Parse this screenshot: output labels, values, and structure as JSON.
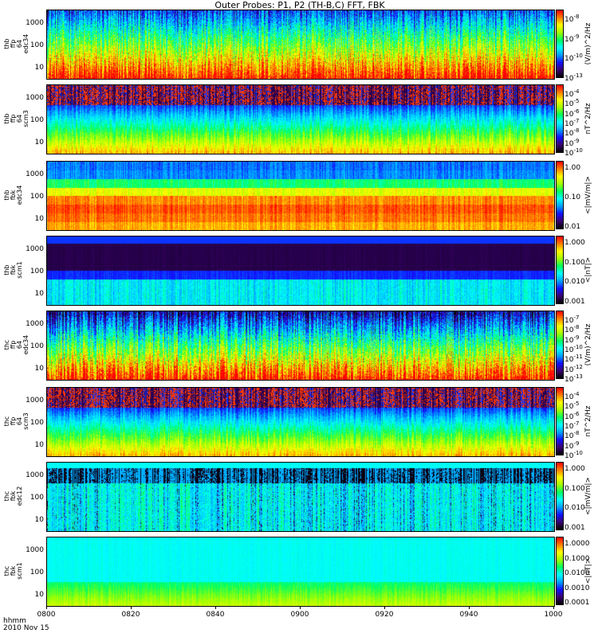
{
  "title": "Outer Probes: P1, P2 (TH-B,C) FFT, FBK",
  "x_axis": {
    "label_top": "hhmm",
    "label_bottom": "2010 Nov 15",
    "ticks": [
      "0800",
      "0820",
      "0840",
      "0900",
      "0920",
      "0940",
      "1000"
    ]
  },
  "colors": {
    "colormap": [
      "#000000",
      "#3a0070",
      "#1010ff",
      "#00a0ff",
      "#00ffff",
      "#00ff60",
      "#a0ff00",
      "#ffff00",
      "#ff8000",
      "#ff0000"
    ]
  },
  "chart_data": {
    "type": "heatmap",
    "time_range": [
      "0800",
      "1000"
    ],
    "panels": [
      {
        "ylabel": [
          "thb",
          "ffp",
          "64",
          "edc34"
        ],
        "yticks": [
          "1000",
          "100",
          "10"
        ],
        "cbar_ticks": [
          "10^-8",
          "10^-9",
          "10^-10",
          "10^-13"
        ],
        "cbar_unit": "(V/m)^2/Hz",
        "pattern": "fft_e"
      },
      {
        "ylabel": [
          "thb",
          "ffp",
          "64",
          "scm3"
        ],
        "yticks": [
          "1000",
          "100",
          "10"
        ],
        "cbar_ticks": [
          "10^-4",
          "10^-5",
          "10^-6",
          "10^-7",
          "10^-8",
          "10^-9",
          "10^-10"
        ],
        "cbar_unit": "nT^2/Hz",
        "pattern": "fft_b"
      },
      {
        "ylabel": [
          "thb",
          "fbk",
          "edc34"
        ],
        "yticks": [
          "1000",
          "100",
          "10"
        ],
        "cbar_ticks": [
          "1.00",
          "0.10",
          "0.01"
        ],
        "cbar_unit": "<|mV/m|>",
        "pattern": "fbk_e"
      },
      {
        "ylabel": [
          "thb",
          "fbk",
          "scm1"
        ],
        "yticks": [
          "1000",
          "100",
          "10"
        ],
        "cbar_ticks": [
          "1.000",
          "0.100",
          "0.010",
          "0.001"
        ],
        "cbar_unit": "<|nT|>",
        "pattern": "fbk_b"
      },
      {
        "ylabel": [
          "thc",
          "ffp",
          "64",
          "edc34"
        ],
        "yticks": [
          "1000",
          "100",
          "10"
        ],
        "cbar_ticks": [
          "10^-7",
          "10^-8",
          "10^-9",
          "10^-10",
          "10^-11",
          "10^-12",
          "10^-13"
        ],
        "cbar_unit": "(V/m)^2/Hz",
        "pattern": "fft_e2"
      },
      {
        "ylabel": [
          "thc",
          "ffp",
          "64",
          "scm3"
        ],
        "yticks": [
          "1000",
          "100",
          "10"
        ],
        "cbar_ticks": [
          "10^-4",
          "10^-5",
          "10^-6",
          "10^-7",
          "10^-8",
          "10^-9",
          "10^-10"
        ],
        "cbar_unit": "nT^2/Hz",
        "pattern": "fft_b"
      },
      {
        "ylabel": [
          "thc",
          "fbk",
          "edc12"
        ],
        "yticks": [
          "1000",
          "100",
          "10"
        ],
        "cbar_ticks": [
          "1.000",
          "0.100",
          "0.010",
          "0.001"
        ],
        "cbar_unit": "<|mV/m|>",
        "pattern": "fbk_e2"
      },
      {
        "ylabel": [
          "thc",
          "fbk",
          "scm1"
        ],
        "yticks": [
          "1000",
          "100",
          "10"
        ],
        "cbar_ticks": [
          "1.0000",
          "0.1000",
          "0.0100",
          "0.0010",
          "0.0001"
        ],
        "cbar_unit": "<|nT|>",
        "pattern": "fbk_b2"
      }
    ]
  }
}
